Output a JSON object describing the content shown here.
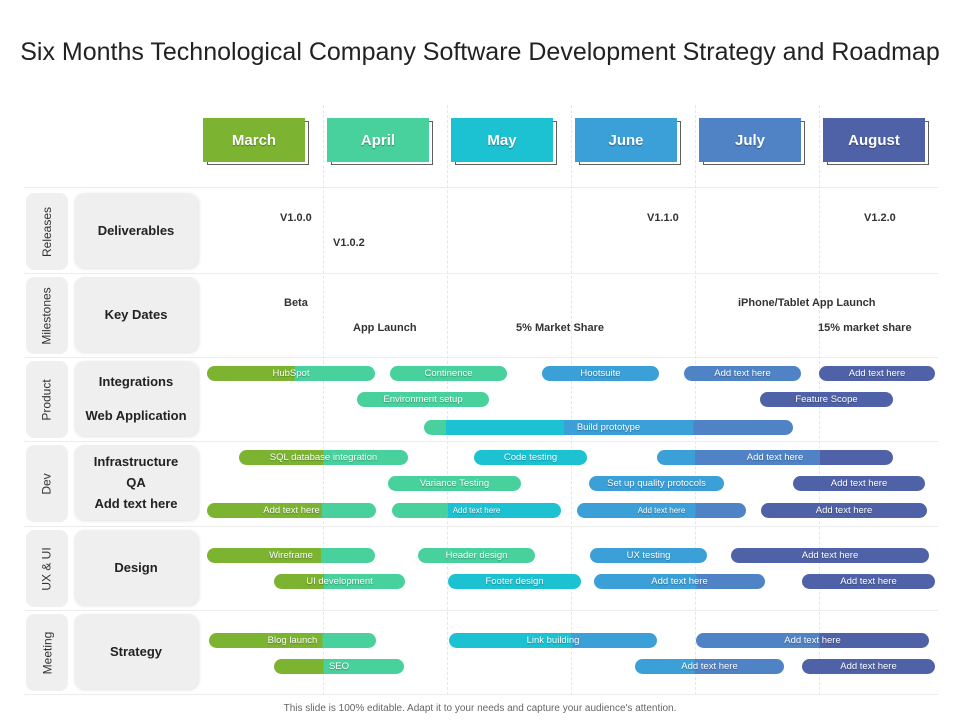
{
  "title": "Six Months Technological Company Software Development Strategy and Roadmap",
  "footer": "This slide is 100% editable. Adapt it to your needs and capture your audience's attention.",
  "colors": {
    "green": "#7cb331",
    "teal": "#48d19d",
    "cyan": "#1cc2d1",
    "blue": "#3b9fd8",
    "steel": "#4f83c6",
    "navy": "#4f62a8",
    "panel": "#efefef"
  },
  "months": [
    {
      "label": "March",
      "color": "#7cb331"
    },
    {
      "label": "April",
      "color": "#48d19d"
    },
    {
      "label": "May",
      "color": "#1cc2d1"
    },
    {
      "label": "June",
      "color": "#3b9fd8"
    },
    {
      "label": "July",
      "color": "#4f83c6"
    },
    {
      "label": "August",
      "color": "#4f62a8"
    }
  ],
  "rows": [
    {
      "category": "Releases",
      "items": [
        "Deliverables"
      ]
    },
    {
      "category": "Milestones",
      "items": [
        "Key Dates"
      ]
    },
    {
      "category": "Product",
      "items": [
        "Integrations",
        "Web Application"
      ]
    },
    {
      "category": "Dev",
      "items": [
        "Infrastructure",
        "QA",
        "Add text here"
      ]
    },
    {
      "category": "UX & UI",
      "items": [
        "Design"
      ]
    },
    {
      "category": "Meeting",
      "items": [
        "Strategy"
      ]
    }
  ],
  "releases": [
    "V1.0.0",
    "V1.0.2",
    "V1.1.0",
    "V1.2.0"
  ],
  "key_dates": [
    "Beta",
    "App Launch",
    "5% Market Share",
    "iPhone/Tablet App Launch",
    "15% market share"
  ],
  "bars": {
    "product": [
      "HubSpot",
      "Continence",
      "Hootsuite",
      "Add text here",
      "Add text here",
      "Environment setup",
      "Feature Scope",
      "Build prototype"
    ],
    "dev": [
      "SQL database integration",
      "Code testing",
      "Add text here",
      "Variance Testing",
      "Set up quality protocols",
      "Add text here",
      "Add text here",
      "Add text here",
      "Add text here",
      "Add text here"
    ],
    "ux": [
      "Wireframe",
      "Header design",
      "UX testing",
      "Add text here",
      "UI development",
      "Footer design",
      "Add text here",
      "Add text here"
    ],
    "meeting": [
      "Blog launch",
      "Link building",
      "Add text here",
      "SEO",
      "Add text here",
      "Add text here"
    ]
  }
}
